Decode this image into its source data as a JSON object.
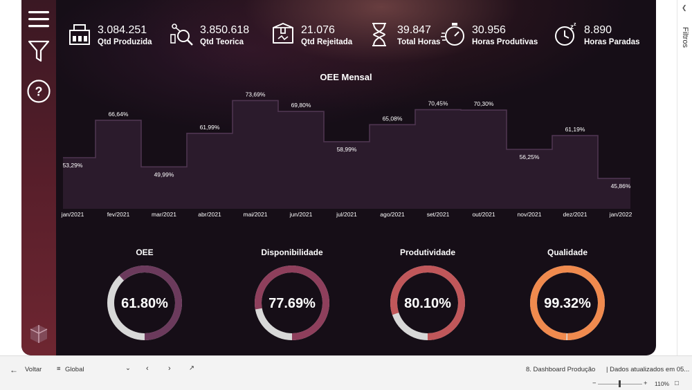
{
  "kpis": [
    {
      "value": "3.084.251",
      "label": "Qtd Produzida",
      "icon": "factory-icon"
    },
    {
      "value": "3.850.618",
      "label": "Qtd Teorica",
      "icon": "analysis-icon"
    },
    {
      "value": "21.076",
      "label": "Qtd Rejeitada",
      "icon": "rejected-box-icon"
    },
    {
      "value": "39.847",
      "label": "Total Horas",
      "icon": "hourglass-icon"
    },
    {
      "value": "30.956",
      "label": "Horas Produtivas",
      "icon": "stopwatch-icon"
    },
    {
      "value": "8.890",
      "label": "Horas Paradas",
      "icon": "sleep-clock-icon"
    }
  ],
  "chart_data": {
    "type": "area",
    "title": "OEE Mensal",
    "categories": [
      "jan/2021",
      "fev/2021",
      "mar/2021",
      "abr/2021",
      "mai/2021",
      "jun/2021",
      "jul/2021",
      "ago/2021",
      "set/2021",
      "out/2021",
      "nov/2021",
      "dez/2021",
      "jan/2022"
    ],
    "values": [
      53.29,
      66.64,
      49.99,
      61.99,
      73.69,
      69.8,
      58.99,
      65.08,
      70.45,
      70.3,
      56.25,
      61.19,
      45.86
    ],
    "value_labels": [
      "53,29%",
      "66,64%",
      "49,99%",
      "61,99%",
      "73,69%",
      "69,80%",
      "58,99%",
      "65,08%",
      "70,45%",
      "70,30%",
      "56,25%",
      "61,19%",
      "45,86%"
    ],
    "step": true,
    "line_color": "#4e3550",
    "fill_color": "#2b1b2c"
  },
  "gauges": [
    {
      "title": "OEE",
      "value": 61.8,
      "label": "61.80%",
      "color": "#6b3a5c"
    },
    {
      "title": "Disponibilidade",
      "value": 77.69,
      "label": "77.69%",
      "color": "#8e3f5c"
    },
    {
      "title": "Produtividade",
      "value": 80.1,
      "label": "80.10%",
      "color": "#c0575a"
    },
    {
      "title": "Qualidade",
      "value": 99.32,
      "label": "99.32%",
      "color": "#f08a4e"
    }
  ],
  "gauge_track_color": "#d8d8d8",
  "filters_label": "Filtros",
  "bottom": {
    "back": "Voltar",
    "bookmark": "Global",
    "page": "8. Dashboard Produção",
    "updated": "| Dados atualizados em 05...",
    "zoom": "110%"
  }
}
